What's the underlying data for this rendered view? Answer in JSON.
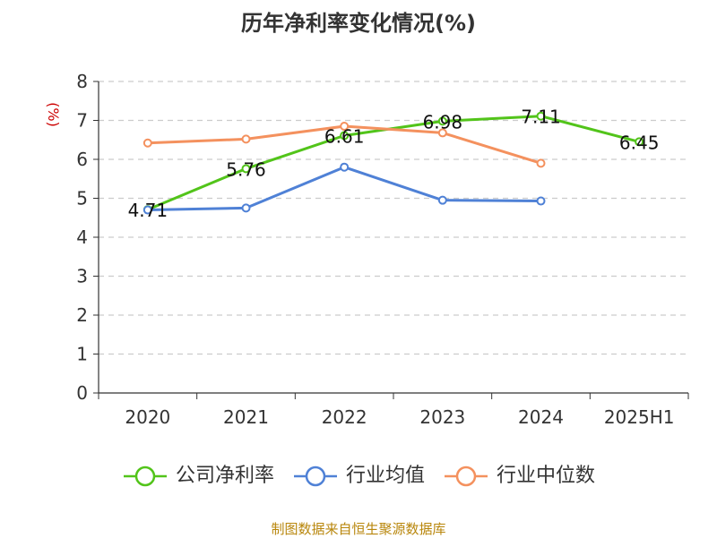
{
  "chart_data": {
    "type": "line",
    "title": "历年净利率变化情况(%)",
    "ylabel": "(%)",
    "xlabel": "",
    "ylim": [
      0,
      8
    ],
    "yticks": [
      "0",
      "1",
      "2",
      "3",
      "4",
      "5",
      "6",
      "7",
      "8"
    ],
    "categories": [
      "2020",
      "2021",
      "2022",
      "2023",
      "2024",
      "2025H1"
    ],
    "grid": true,
    "legend_position": "bottom",
    "series": [
      {
        "name": "公司净利率",
        "color": "#52c41a",
        "values": [
          4.71,
          5.76,
          6.61,
          6.98,
          7.11,
          6.45
        ],
        "labels": [
          "4.71",
          "5.76",
          "6.61",
          "6.98",
          "7.11",
          "6.45"
        ]
      },
      {
        "name": "行业均值",
        "color": "#4f81d6",
        "values": [
          4.7,
          4.75,
          5.8,
          4.95,
          4.93,
          null
        ]
      },
      {
        "name": "行业中位数",
        "color": "#f4915e",
        "values": [
          6.42,
          6.52,
          6.85,
          6.68,
          5.9,
          null
        ]
      }
    ]
  },
  "source_text": "制图数据来自恒生聚源数据库"
}
